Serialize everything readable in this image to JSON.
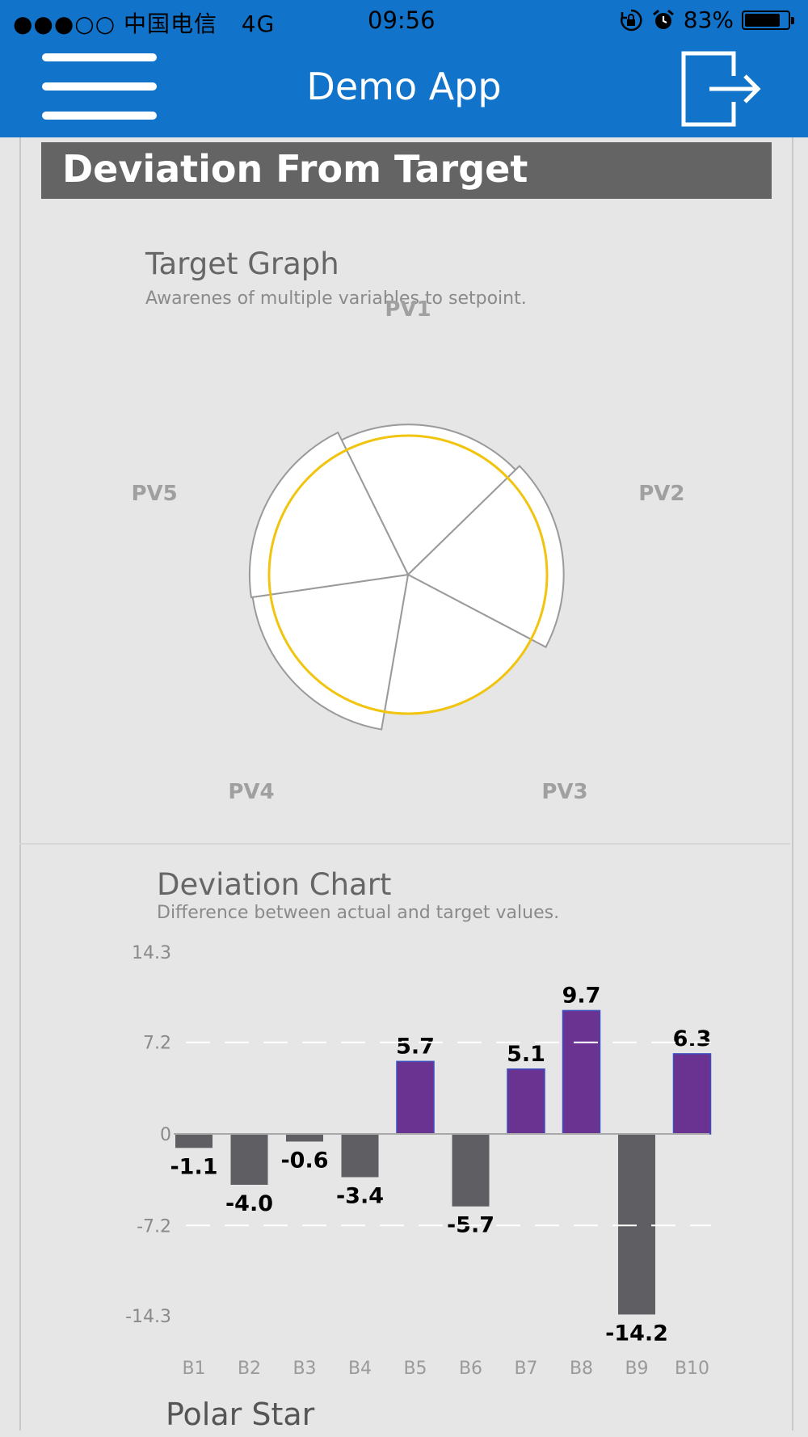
{
  "status_bar": {
    "carrier": "●●●○○ 中国电信",
    "network": "4G",
    "time": "09:56",
    "battery": "83%",
    "battery_level": 0.83,
    "icons": [
      "orientation-lock-icon",
      "alarm-icon",
      "battery-icon"
    ]
  },
  "app_bar": {
    "title": "Demo App",
    "menu_icon": "hamburger-menu-icon",
    "logout_icon": "logout-icon",
    "color": "#1173c9"
  },
  "section": {
    "title": "Deviation From Target"
  },
  "target_graph": {
    "title": "Target Graph",
    "subtitle": "Awarenes of multiple variables to setpoint.",
    "axes": [
      "PV1",
      "PV2",
      "PV3",
      "PV4",
      "PV5"
    ],
    "ring_color": "#f1c40f"
  },
  "deviation_chart": {
    "title": "Deviation Chart",
    "subtitle": "Difference between actual and target values."
  },
  "chart_data": [
    {
      "type": "polar-area",
      "title": "Target Graph",
      "subtitle": "Awarenes of multiple variables to setpoint.",
      "categories": [
        "PV1",
        "PV2",
        "PV3",
        "PV4",
        "PV5"
      ],
      "values": [
        1.08,
        1.12,
        1.0,
        1.13,
        1.14
      ],
      "target": 1.0
    },
    {
      "type": "bar",
      "title": "Deviation Chart",
      "subtitle": "Difference between actual and target values.",
      "categories": [
        "B1",
        "B2",
        "B3",
        "B4",
        "B5",
        "B6",
        "B7",
        "B8",
        "B9",
        "B10"
      ],
      "values": [
        -1.1,
        -4.0,
        -0.6,
        -3.4,
        5.7,
        -5.7,
        5.1,
        9.7,
        -14.2,
        6.3
      ],
      "labels": [
        "-1.1",
        "-4.0",
        "-0.6",
        "-3.4",
        "5.7",
        "-5.7",
        "5.1",
        "9.7",
        "-14.2",
        "6.3"
      ],
      "yticks": [
        "14.3",
        "7.2",
        "0",
        "-7.2",
        "-14.3"
      ],
      "ytick_values": [
        14.3,
        7.2,
        0,
        -7.2,
        -14.3
      ],
      "ylim": [
        -14.3,
        14.3
      ],
      "positive_color": "#6a3391",
      "negative_color": "#5f5f63"
    }
  ],
  "next_section": {
    "title": "Polar Star"
  }
}
